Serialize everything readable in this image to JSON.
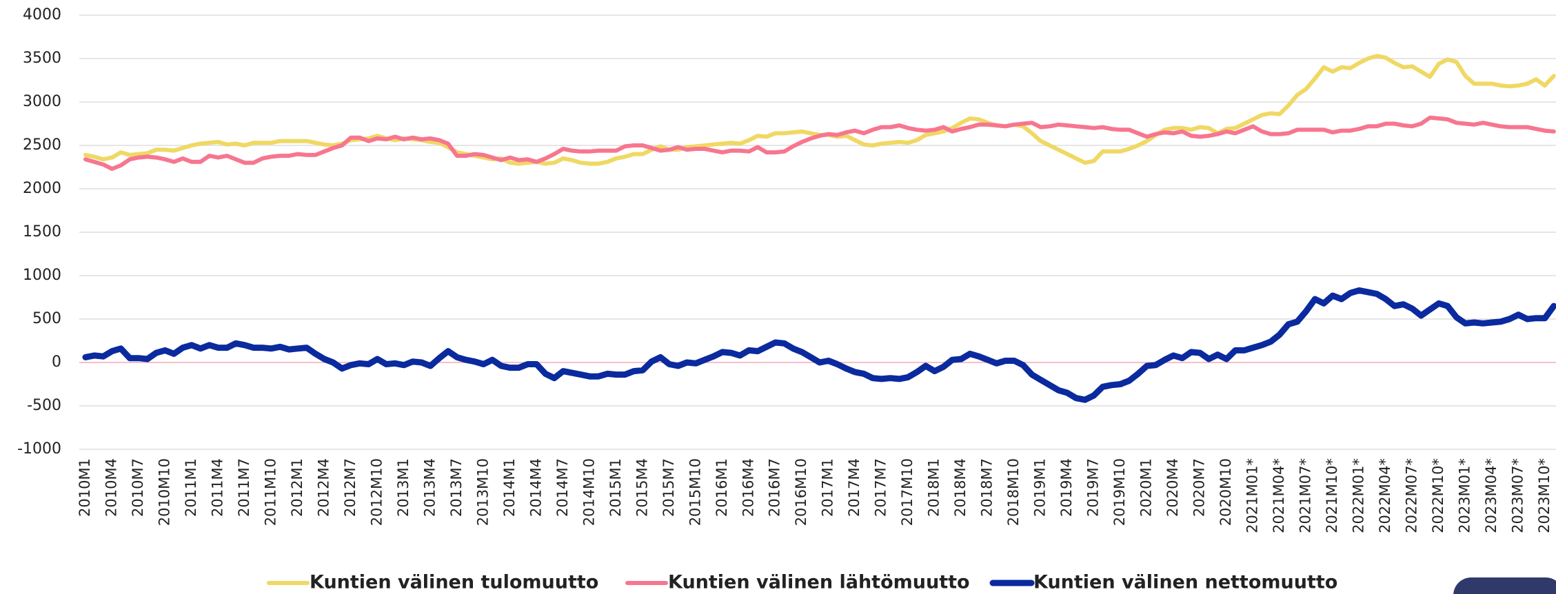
{
  "chart_data": {
    "type": "line",
    "categories": [
      "2010M1",
      null,
      null,
      "2010M4",
      null,
      null,
      "2010M7",
      null,
      null,
      "2010M10",
      null,
      null,
      "2011M1",
      null,
      null,
      "2011M4",
      null,
      null,
      "2011M7",
      null,
      null,
      "2011M10",
      null,
      null,
      "2012M1",
      null,
      null,
      "2012M4",
      null,
      null,
      "2012M7",
      null,
      null,
      "2012M10",
      null,
      null,
      "2013M1",
      null,
      null,
      "2013M4",
      null,
      null,
      "2013M7",
      null,
      null,
      "2013M10",
      null,
      null,
      "2014M1",
      null,
      null,
      "2014M4",
      null,
      null,
      "2014M7",
      null,
      null,
      "2014M10",
      null,
      null,
      "2015M1",
      null,
      null,
      "2015M4",
      null,
      null,
      "2015M7",
      null,
      null,
      "2015M10",
      null,
      null,
      "2016M1",
      null,
      null,
      "2016M4",
      null,
      null,
      "2016M7",
      null,
      null,
      "2016M10",
      null,
      null,
      "2017M1",
      null,
      null,
      "2017M4",
      null,
      null,
      "2017M7",
      null,
      null,
      "2017M10",
      null,
      null,
      "2018M1",
      null,
      null,
      "2018M4",
      null,
      null,
      "2018M7",
      null,
      null,
      "2018M10",
      null,
      null,
      "2019M1",
      null,
      null,
      "2019M4",
      null,
      null,
      "2019M7",
      null,
      null,
      "2019M10",
      null,
      null,
      "2020M1",
      null,
      null,
      "2020M4",
      null,
      null,
      "2020M7",
      null,
      null,
      "2020M10",
      null,
      null,
      "2021M01*",
      null,
      null,
      "2021M04*",
      null,
      null,
      "2021M07*",
      null,
      null,
      "2021M10*",
      null,
      null,
      "2022M01*",
      null,
      null,
      "2022M04*",
      null,
      null,
      "2022M07*",
      null,
      null,
      "2022M10*",
      null,
      null,
      "2023M01*",
      null,
      null,
      "2023M04*",
      null,
      null,
      "2023M07*",
      null,
      null,
      "2023M10*",
      null
    ],
    "series": [
      {
        "name": "Kuntien välinen tulomuutto",
        "color": "#f0d864",
        "width": 6,
        "values": [
          2390,
          2370,
          2340,
          2360,
          2420,
          2390,
          2400,
          2410,
          2450,
          2450,
          2440,
          2470,
          2500,
          2520,
          2530,
          2540,
          2510,
          2520,
          2500,
          2530,
          2530,
          2530,
          2550,
          2550,
          2550,
          2550,
          2530,
          2510,
          2500,
          2520,
          2560,
          2570,
          2580,
          2610,
          2580,
          2560,
          2580,
          2570,
          2560,
          2540,
          2530,
          2480,
          2420,
          2400,
          2380,
          2360,
          2340,
          2350,
          2300,
          2290,
          2300,
          2310,
          2290,
          2300,
          2350,
          2330,
          2300,
          2290,
          2290,
          2310,
          2350,
          2370,
          2400,
          2400,
          2450,
          2490,
          2450,
          2450,
          2480,
          2490,
          2500,
          2510,
          2520,
          2530,
          2520,
          2560,
          2610,
          2600,
          2640,
          2640,
          2650,
          2660,
          2640,
          2620,
          2620,
          2600,
          2610,
          2560,
          2510,
          2500,
          2520,
          2530,
          2540,
          2530,
          2560,
          2620,
          2640,
          2660,
          2700,
          2760,
          2810,
          2800,
          2760,
          2730,
          2720,
          2740,
          2720,
          2640,
          2550,
          2500,
          2450,
          2400,
          2350,
          2300,
          2320,
          2430,
          2430,
          2430,
          2460,
          2500,
          2550,
          2620,
          2680,
          2700,
          2700,
          2680,
          2710,
          2700,
          2640,
          2690,
          2700,
          2750,
          2800,
          2850,
          2870,
          2860,
          2960,
          3080,
          3150,
          3270,
          3400,
          3350,
          3400,
          3390,
          3450,
          3500,
          3530,
          3510,
          3450,
          3400,
          3410,
          3350,
          3290,
          3440,
          3490,
          3460,
          3300,
          3210,
          3210,
          3210,
          3190,
          3180,
          3190,
          3210,
          3260,
          3190,
          3300
        ]
      },
      {
        "name": "Kuntien välinen lähtömuutto",
        "color": "#f7768f",
        "width": 6,
        "values": [
          2340,
          2310,
          2280,
          2230,
          2270,
          2340,
          2360,
          2370,
          2360,
          2340,
          2310,
          2350,
          2310,
          2310,
          2380,
          2360,
          2380,
          2340,
          2300,
          2300,
          2350,
          2370,
          2380,
          2380,
          2400,
          2390,
          2390,
          2430,
          2470,
          2500,
          2590,
          2590,
          2550,
          2580,
          2570,
          2600,
          2570,
          2590,
          2570,
          2580,
          2560,
          2520,
          2380,
          2380,
          2400,
          2390,
          2360,
          2330,
          2360,
          2330,
          2340,
          2310,
          2350,
          2400,
          2460,
          2440,
          2430,
          2430,
          2440,
          2440,
          2440,
          2490,
          2500,
          2500,
          2470,
          2440,
          2450,
          2480,
          2450,
          2460,
          2460,
          2440,
          2420,
          2440,
          2440,
          2430,
          2480,
          2420,
          2420,
          2430,
          2490,
          2540,
          2580,
          2610,
          2630,
          2620,
          2650,
          2670,
          2640,
          2680,
          2710,
          2710,
          2730,
          2700,
          2680,
          2670,
          2680,
          2710,
          2660,
          2690,
          2710,
          2740,
          2740,
          2730,
          2720,
          2740,
          2750,
          2760,
          2710,
          2720,
          2740,
          2730,
          2720,
          2710,
          2700,
          2710,
          2690,
          2680,
          2680,
          2640,
          2600,
          2630,
          2650,
          2640,
          2660,
          2610,
          2600,
          2610,
          2630,
          2660,
          2640,
          2680,
          2720,
          2660,
          2630,
          2630,
          2640,
          2680,
          2680,
          2680,
          2680,
          2650,
          2670,
          2670,
          2690,
          2720,
          2720,
          2750,
          2750,
          2730,
          2720,
          2750,
          2820,
          2810,
          2800,
          2760,
          2750,
          2740,
          2760,
          2740,
          2720,
          2710,
          2710,
          2710,
          2690,
          2670,
          2660
        ]
      },
      {
        "name": "Kuntien välinen nettomuutto",
        "color": "#0a2a9e",
        "width": 9,
        "values": [
          60,
          80,
          70,
          130,
          160,
          50,
          50,
          40,
          110,
          140,
          100,
          170,
          200,
          160,
          200,
          170,
          170,
          220,
          200,
          170,
          170,
          160,
          180,
          150,
          160,
          170,
          100,
          40,
          0,
          -70,
          -30,
          -10,
          -20,
          40,
          -20,
          -10,
          -30,
          10,
          0,
          -40,
          50,
          130,
          60,
          30,
          10,
          -20,
          30,
          -40,
          -60,
          -60,
          -20,
          -20,
          -130,
          -180,
          -100,
          -120,
          -140,
          -160,
          -160,
          -130,
          -140,
          -140,
          -100,
          -90,
          10,
          60,
          -20,
          -40,
          0,
          -10,
          30,
          70,
          120,
          110,
          80,
          140,
          130,
          180,
          230,
          220,
          160,
          120,
          60,
          0,
          20,
          -20,
          -70,
          -110,
          -130,
          -180,
          -190,
          -180,
          -190,
          -170,
          -110,
          -40,
          -100,
          -50,
          30,
          40,
          100,
          70,
          30,
          -10,
          20,
          20,
          -30,
          -140,
          -200,
          -260,
          -320,
          -350,
          -410,
          -430,
          -380,
          -280,
          -260,
          -250,
          -210,
          -130,
          -40,
          -30,
          30,
          80,
          50,
          120,
          110,
          40,
          90,
          40,
          140,
          140,
          170,
          200,
          240,
          320,
          440,
          470,
          590,
          730,
          680,
          770,
          730,
          800,
          830,
          810,
          790,
          730,
          650,
          670,
          620,
          540,
          610,
          680,
          650,
          520,
          450,
          460,
          450,
          460,
          470,
          500,
          550,
          500,
          510,
          510,
          650
        ]
      }
    ],
    "ylim": [
      -1000,
      4000
    ],
    "yticks": [
      -1000,
      -500,
      0,
      500,
      1000,
      1500,
      2000,
      2500,
      3000,
      3500,
      4000
    ],
    "grid": true,
    "grid_color": "#dddddd",
    "zero_line_color": "#f7a8b8",
    "legend": "bottom"
  }
}
